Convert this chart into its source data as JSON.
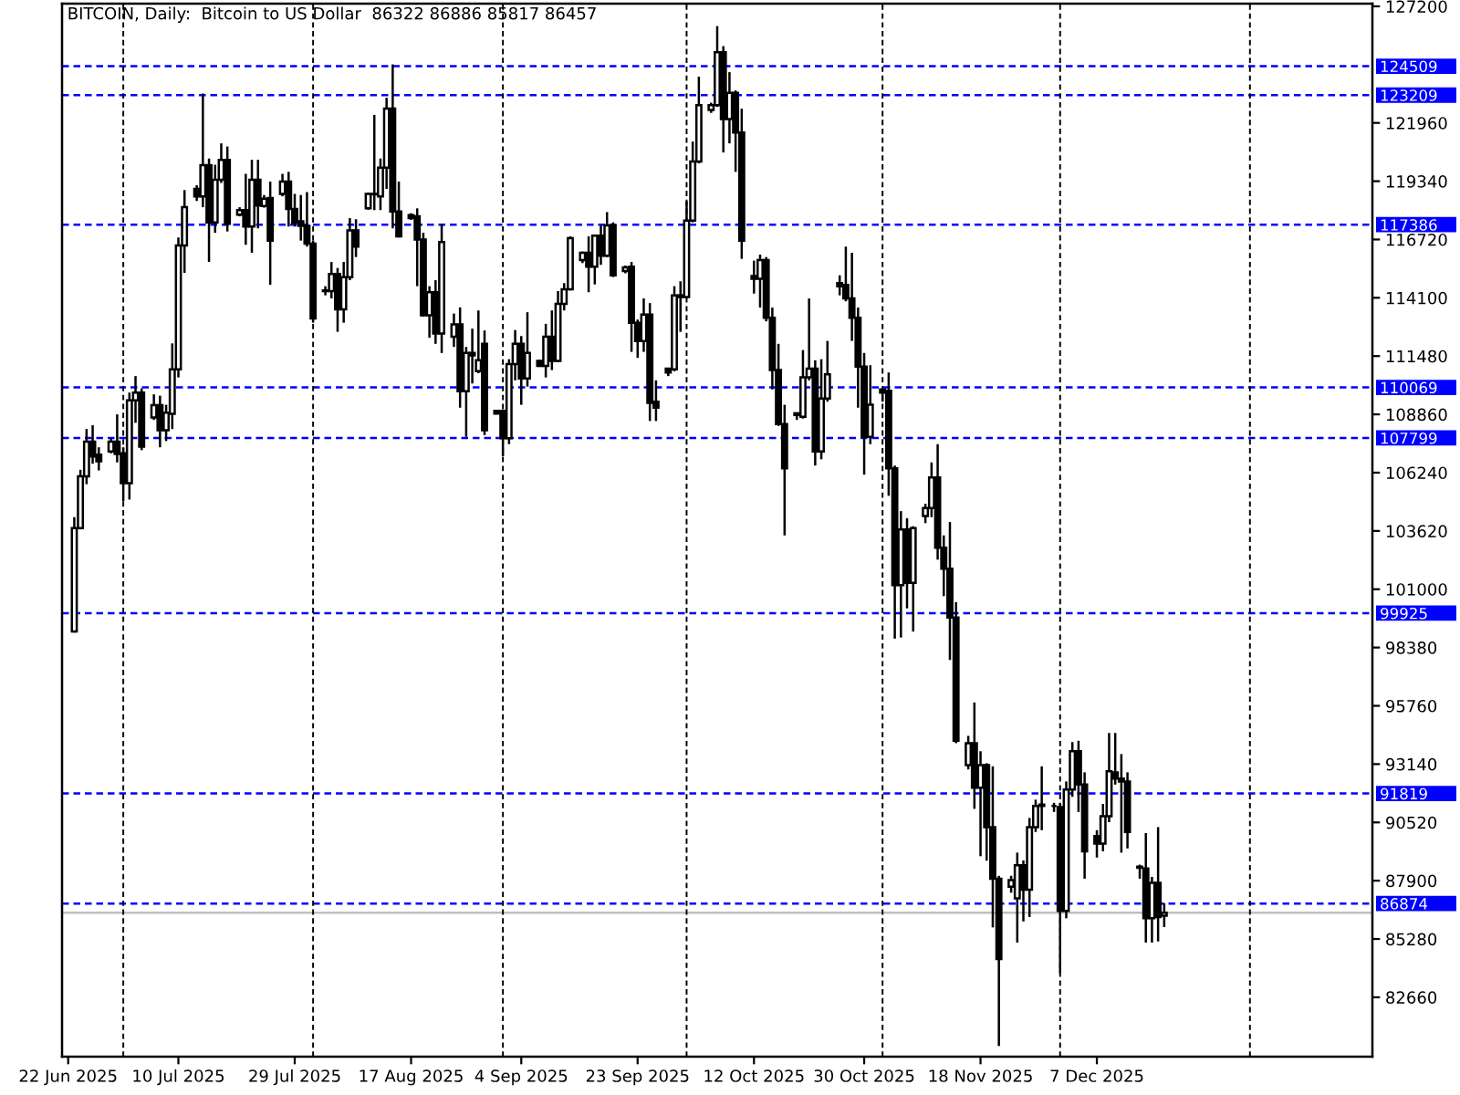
{
  "chart_data": {
    "type": "candlestick",
    "title": "BITCOIN, Daily:  Bitcoin to US Dollar  86322 86886 85817 86457",
    "x": [
      "2025-06-23",
      "2025-06-24",
      "2025-06-25",
      "2025-06-26",
      "2025-06-27",
      "2025-06-29",
      "2025-06-30",
      "2025-07-01",
      "2025-07-02",
      "2025-07-03",
      "2025-07-04",
      "2025-07-06",
      "2025-07-07",
      "2025-07-08",
      "2025-07-09",
      "2025-07-10",
      "2025-07-11",
      "2025-07-13",
      "2025-07-14",
      "2025-07-15",
      "2025-07-16",
      "2025-07-17",
      "2025-07-18",
      "2025-07-20",
      "2025-07-21",
      "2025-07-22",
      "2025-07-23",
      "2025-07-24",
      "2025-07-25",
      "2025-07-27",
      "2025-07-28",
      "2025-07-29",
      "2025-07-30",
      "2025-07-31",
      "2025-08-01",
      "2025-08-03",
      "2025-08-04",
      "2025-08-05",
      "2025-08-06",
      "2025-08-07",
      "2025-08-08",
      "2025-08-10",
      "2025-08-11",
      "2025-08-12",
      "2025-08-13",
      "2025-08-14",
      "2025-08-15",
      "2025-08-17",
      "2025-08-18",
      "2025-08-19",
      "2025-08-20",
      "2025-08-21",
      "2025-08-22",
      "2025-08-24",
      "2025-08-25",
      "2025-08-26",
      "2025-08-27",
      "2025-08-28",
      "2025-08-29",
      "2025-08-31",
      "2025-09-01",
      "2025-09-02",
      "2025-09-03",
      "2025-09-04",
      "2025-09-05",
      "2025-09-07",
      "2025-09-08",
      "2025-09-09",
      "2025-09-10",
      "2025-09-11",
      "2025-09-12",
      "2025-09-14",
      "2025-09-15",
      "2025-09-16",
      "2025-09-17",
      "2025-09-18",
      "2025-09-19",
      "2025-09-21",
      "2025-09-22",
      "2025-09-23",
      "2025-09-24",
      "2025-09-25",
      "2025-09-26",
      "2025-09-28",
      "2025-09-29",
      "2025-09-30",
      "2025-10-01",
      "2025-10-02",
      "2025-10-03",
      "2025-10-05",
      "2025-10-06",
      "2025-10-07",
      "2025-10-08",
      "2025-10-09",
      "2025-10-10",
      "2025-10-12",
      "2025-10-13",
      "2025-10-14",
      "2025-10-15",
      "2025-10-16",
      "2025-10-17",
      "2025-10-19",
      "2025-10-20",
      "2025-10-21",
      "2025-10-22",
      "2025-10-23",
      "2025-10-24",
      "2025-10-26",
      "2025-10-27",
      "2025-10-28",
      "2025-10-29",
      "2025-10-30",
      "2025-10-31",
      "2025-11-02",
      "2025-11-03",
      "2025-11-04",
      "2025-11-05",
      "2025-11-06",
      "2025-11-07",
      "2025-11-09",
      "2025-11-10",
      "2025-11-11",
      "2025-11-12",
      "2025-11-13",
      "2025-11-14",
      "2025-11-16",
      "2025-11-17",
      "2025-11-18",
      "2025-11-19",
      "2025-11-20",
      "2025-11-21",
      "2025-11-23",
      "2025-11-24",
      "2025-11-25",
      "2025-11-26",
      "2025-11-27",
      "2025-11-28",
      "2025-11-30",
      "2025-12-01",
      "2025-12-02",
      "2025-12-03",
      "2025-12-04",
      "2025-12-05",
      "2025-12-07",
      "2025-12-08",
      "2025-12-09",
      "2025-12-10",
      "2025-12-11",
      "2025-12-12",
      "2025-12-14",
      "2025-12-15",
      "2025-12-16",
      "2025-12-17",
      "2025-12-18"
    ],
    "ohlc": [
      [
        99100,
        104240,
        99050,
        103750
      ],
      [
        103750,
        106370,
        103690,
        106070
      ],
      [
        106070,
        108200,
        105720,
        107630
      ],
      [
        107630,
        108370,
        106640,
        106970
      ],
      [
        107050,
        107380,
        106340,
        106750
      ],
      [
        107190,
        107790,
        107110,
        107630
      ],
      [
        107630,
        108860,
        106700,
        107080
      ],
      [
        107110,
        107380,
        104950,
        105770
      ],
      [
        105770,
        109840,
        105030,
        109490
      ],
      [
        109490,
        110580,
        108480,
        109840
      ],
      [
        109840,
        110030,
        107250,
        107410
      ],
      [
        108720,
        109760,
        108610,
        109270
      ],
      [
        109270,
        109700,
        107380,
        108150
      ],
      [
        108150,
        109290,
        107660,
        108940
      ],
      [
        108880,
        112050,
        108200,
        110880
      ],
      [
        110880,
        116810,
        110520,
        116450
      ],
      [
        116450,
        118940,
        115220,
        118170
      ],
      [
        118990,
        119160,
        118450,
        118660
      ],
      [
        118660,
        123280,
        118170,
        120060
      ],
      [
        120060,
        120360,
        115710,
        117490
      ],
      [
        117490,
        120080,
        117020,
        119400
      ],
      [
        119400,
        121040,
        119260,
        120300
      ],
      [
        120300,
        120900,
        117080,
        117430
      ],
      [
        117840,
        118170,
        117760,
        118040
      ],
      [
        118040,
        119670,
        116480,
        117300
      ],
      [
        117300,
        120300,
        116120,
        119400
      ],
      [
        119400,
        120300,
        117220,
        118250
      ],
      [
        118230,
        118720,
        118150,
        118550
      ],
      [
        118580,
        119320,
        114680,
        116670
      ],
      [
        118770,
        119670,
        118660,
        119320
      ],
      [
        119320,
        119760,
        117300,
        118090
      ],
      [
        118090,
        118770,
        117300,
        117490
      ],
      [
        117540,
        118720,
        116670,
        117330
      ],
      [
        117330,
        118850,
        116400,
        116530
      ],
      [
        116530,
        116670,
        112980,
        113170
      ],
      [
        114400,
        114620,
        114210,
        114430
      ],
      [
        114400,
        115710,
        114070,
        115170
      ],
      [
        115170,
        115440,
        112570,
        113580
      ],
      [
        113580,
        115710,
        112980,
        115030
      ],
      [
        115030,
        117680,
        114890,
        117130
      ],
      [
        117130,
        117630,
        115930,
        116400
      ],
      [
        118120,
        118830,
        118060,
        118770
      ],
      [
        118750,
        122320,
        118040,
        118770
      ],
      [
        118660,
        120360,
        118040,
        119950
      ],
      [
        119950,
        123090,
        118990,
        122600
      ],
      [
        122600,
        124590,
        117220,
        117980
      ],
      [
        117980,
        119320,
        116810,
        116860
      ],
      [
        117820,
        117900,
        117600,
        117680
      ],
      [
        117760,
        118120,
        114620,
        116720
      ],
      [
        116720,
        117020,
        113250,
        113310
      ],
      [
        113310,
        114620,
        112300,
        114350
      ],
      [
        114350,
        114890,
        112030,
        112490
      ],
      [
        112490,
        117410,
        111620,
        116610
      ],
      [
        112350,
        113390,
        111890,
        112900
      ],
      [
        112900,
        113670,
        109160,
        109900
      ],
      [
        109900,
        111890,
        107850,
        111620
      ],
      [
        111620,
        112710,
        110250,
        111510
      ],
      [
        110800,
        113530,
        110710,
        111290
      ],
      [
        112030,
        112630,
        107930,
        108150
      ],
      [
        109020,
        109060,
        108860,
        108890
      ],
      [
        109020,
        109080,
        106970,
        107790
      ],
      [
        107790,
        111340,
        107520,
        111120
      ],
      [
        111120,
        112650,
        110390,
        112030
      ],
      [
        112030,
        112380,
        109290,
        110470
      ],
      [
        110470,
        113450,
        110110,
        111620
      ],
      [
        111260,
        111300,
        110990,
        111040
      ],
      [
        111040,
        112930,
        110520,
        112350
      ],
      [
        112350,
        113530,
        110850,
        111260
      ],
      [
        111260,
        114400,
        111210,
        113830
      ],
      [
        113830,
        114760,
        113530,
        114480
      ],
      [
        114480,
        116860,
        114430,
        116780
      ],
      [
        115800,
        116180,
        115660,
        116120
      ],
      [
        116120,
        116860,
        114350,
        115500
      ],
      [
        115500,
        116940,
        114700,
        116890
      ],
      [
        116890,
        117350,
        115580,
        115990
      ],
      [
        115990,
        117950,
        115930,
        117350
      ],
      [
        117350,
        117490,
        115030,
        115110
      ],
      [
        115300,
        115550,
        115200,
        115470
      ],
      [
        115500,
        115710,
        111670,
        112980
      ],
      [
        112980,
        113120,
        111400,
        112160
      ],
      [
        112160,
        114070,
        111670,
        113340
      ],
      [
        113340,
        113860,
        108560,
        109380
      ],
      [
        109430,
        110390,
        108560,
        109160
      ],
      [
        110910,
        110930,
        110580,
        110740
      ],
      [
        110880,
        114620,
        110800,
        114210
      ],
      [
        114210,
        114840,
        112570,
        114130
      ],
      [
        114130,
        118440,
        114070,
        117570
      ],
      [
        117570,
        121120,
        117490,
        120220
      ],
      [
        120220,
        124040,
        120140,
        122760
      ],
      [
        122540,
        122870,
        122410,
        122760
      ],
      [
        122760,
        126310,
        122680,
        125140
      ],
      [
        125140,
        125410,
        120630,
        122130
      ],
      [
        122130,
        124240,
        121040,
        123310
      ],
      [
        123310,
        123420,
        119760,
        121530
      ],
      [
        121530,
        122600,
        115850,
        116670
      ],
      [
        115080,
        115770,
        114290,
        114950
      ],
      [
        114950,
        116040,
        113660,
        115800
      ],
      [
        115800,
        115930,
        113040,
        113200
      ],
      [
        113200,
        113660,
        109980,
        110850
      ],
      [
        110850,
        112030,
        108340,
        108420
      ],
      [
        108420,
        109290,
        103420,
        106430
      ],
      [
        108830,
        108940,
        108610,
        108910
      ],
      [
        108750,
        111750,
        108670,
        110520
      ],
      [
        110520,
        114070,
        110390,
        110910
      ],
      [
        110910,
        111290,
        106560,
        107190
      ],
      [
        107190,
        111340,
        106840,
        109570
      ],
      [
        109570,
        112160,
        109430,
        110660
      ],
      [
        114760,
        115110,
        114210,
        114620
      ],
      [
        114680,
        116400,
        113940,
        114070
      ],
      [
        114070,
        116120,
        112160,
        113200
      ],
      [
        113200,
        113660,
        109160,
        111010
      ],
      [
        111010,
        111620,
        106150,
        107850
      ],
      [
        107850,
        111070,
        107520,
        109290
      ],
      [
        109980,
        110060,
        109430,
        109840
      ],
      [
        109920,
        110740,
        105200,
        106430
      ],
      [
        106430,
        106560,
        98780,
        101180
      ],
      [
        101180,
        104510,
        98830,
        103690
      ],
      [
        103690,
        104190,
        100140,
        101290
      ],
      [
        101290,
        103830,
        99100,
        103750
      ],
      [
        104290,
        104840,
        103970,
        104650
      ],
      [
        104650,
        106700,
        104240,
        106020
      ],
      [
        106020,
        107520,
        102330,
        102870
      ],
      [
        102870,
        103420,
        100690,
        101920
      ],
      [
        101920,
        104020,
        97820,
        99730
      ],
      [
        99730,
        100420,
        94080,
        94190
      ],
      [
        93090,
        94410,
        92900,
        94080
      ],
      [
        94080,
        95910,
        91130,
        92080
      ],
      [
        92080,
        93720,
        89000,
        93090
      ],
      [
        93090,
        93180,
        88800,
        90310
      ],
      [
        90310,
        93040,
        85800,
        87990
      ],
      [
        87990,
        88120,
        80470,
        84380
      ],
      [
        87630,
        88120,
        87360,
        87930
      ],
      [
        87110,
        89160,
        85120,
        88590
      ],
      [
        88590,
        88810,
        86070,
        87500
      ],
      [
        87500,
        90720,
        86270,
        90310
      ],
      [
        90310,
        91540,
        90090,
        91260
      ],
      [
        91260,
        93040,
        90170,
        91320
      ],
      [
        91260,
        91400,
        90990,
        91260
      ],
      [
        91210,
        91400,
        83750,
        86540
      ],
      [
        86540,
        92360,
        86210,
        92000
      ],
      [
        92000,
        94130,
        91670,
        93720
      ],
      [
        93720,
        94190,
        90990,
        92220
      ],
      [
        92220,
        92770,
        87990,
        89220
      ],
      [
        89900,
        90170,
        88940,
        89570
      ],
      [
        89570,
        91350,
        89220,
        90800
      ],
      [
        90800,
        94540,
        90530,
        92820
      ],
      [
        92770,
        94540,
        92220,
        92490
      ],
      [
        92490,
        93590,
        89160,
        92360
      ],
      [
        92360,
        92770,
        89350,
        90090
      ],
      [
        88530,
        88620,
        87990,
        88480
      ],
      [
        88450,
        90040,
        85120,
        86210
      ],
      [
        86210,
        88070,
        85120,
        87800
      ],
      [
        87800,
        90310,
        85170,
        86270
      ],
      [
        86322,
        86886,
        85817,
        86457
      ]
    ],
    "xlim": [
      "2025-06-21",
      "2026-01-21"
    ],
    "xticks": [
      {
        "value": "2025-06-22",
        "label": "22 Jun 2025"
      },
      {
        "value": "2025-07-10",
        "label": "10 Jul 2025"
      },
      {
        "value": "2025-07-29",
        "label": "29 Jul 2025"
      },
      {
        "value": "2025-08-17",
        "label": "17 Aug 2025"
      },
      {
        "value": "2025-09-04",
        "label": "4 Sep 2025"
      },
      {
        "value": "2025-09-23",
        "label": "23 Sep 2025"
      },
      {
        "value": "2025-10-12",
        "label": "12 Oct 2025"
      },
      {
        "value": "2025-10-30",
        "label": "30 Oct 2025"
      },
      {
        "value": "2025-11-18",
        "label": "18 Nov 2025"
      },
      {
        "value": "2025-12-07",
        "label": "7 Dec 2025"
      }
    ],
    "ylim": [
      79990,
      127320
    ],
    "yticks": [
      82660,
      85280,
      87900,
      90520,
      93140,
      95760,
      98380,
      101000,
      103620,
      106240,
      108860,
      111480,
      114100,
      116720,
      119340,
      121960,
      127200
    ],
    "ref_lines": [
      {
        "axis": "y",
        "value": 124509,
        "label": "124509",
        "color": "#0000ff",
        "line_style": "dashed"
      },
      {
        "axis": "y",
        "value": 123209,
        "label": "123209",
        "color": "#0000ff",
        "line_style": "dashed"
      },
      {
        "axis": "y",
        "value": 117386,
        "label": "117386",
        "color": "#0000ff",
        "line_style": "dashed"
      },
      {
        "axis": "y",
        "value": 110069,
        "label": "110069",
        "color": "#0000ff",
        "line_style": "dashed"
      },
      {
        "axis": "y",
        "value": 107799,
        "label": "107799",
        "color": "#0000ff",
        "line_style": "dashed"
      },
      {
        "axis": "y",
        "value": 99925,
        "label": "99925",
        "color": "#0000ff",
        "line_style": "dashed"
      },
      {
        "axis": "y",
        "value": 91819,
        "label": "91819",
        "color": "#0000ff",
        "line_style": "dashed"
      },
      {
        "axis": "y",
        "value": 86874,
        "label": "86874",
        "color": "#0000ff",
        "line_style": "dashed"
      },
      {
        "axis": "y",
        "value": 86457,
        "color": "#c0c0c0",
        "line_style": "solid"
      },
      {
        "axis": "x",
        "value": "2025-07-01",
        "color": "#000000",
        "line_style": "dashed"
      },
      {
        "axis": "x",
        "value": "2025-08-01",
        "color": "#000000",
        "line_style": "dashed"
      },
      {
        "axis": "x",
        "value": "2025-09-01",
        "color": "#000000",
        "line_style": "dashed"
      },
      {
        "axis": "x",
        "value": "2025-10-01",
        "color": "#000000",
        "line_style": "dashed"
      },
      {
        "axis": "x",
        "value": "2025-11-02",
        "color": "#000000",
        "line_style": "dashed"
      },
      {
        "axis": "x",
        "value": "2025-12-01",
        "color": "#000000",
        "line_style": "dashed"
      },
      {
        "axis": "x",
        "value": "2026-01-01",
        "color": "#000000",
        "line_style": "dashed"
      }
    ]
  }
}
